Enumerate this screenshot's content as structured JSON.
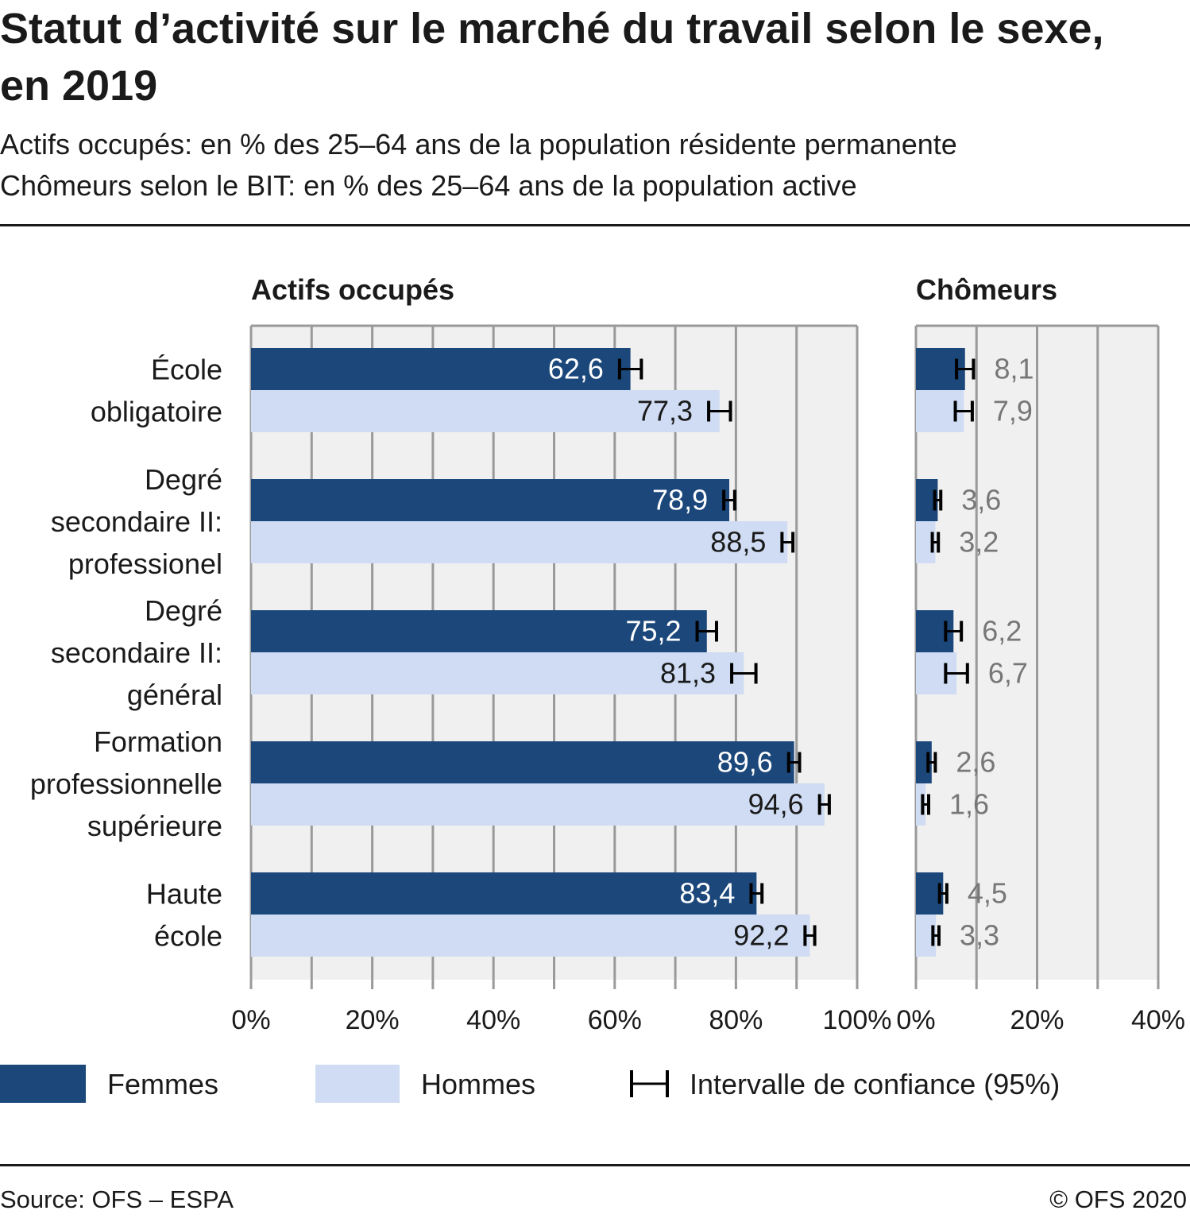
{
  "title": "Statut d’activité sur le marché du travail selon le sexe, en 2019",
  "subtitle_lines": [
    "Actifs occupés: en % des 25–64 ans de la population résidente permanente",
    "Chômeurs selon le BIT: en % des 25–64 ans de la population active"
  ],
  "source": "Source: OFS – ESPA",
  "copyright": "© OFS 2020",
  "colors": {
    "femmes": "#1b477b",
    "hommes": "#cfdcf3",
    "plot_bg": "#f0f0f0",
    "grid": "#9a9a9a",
    "label_outside": "#777777"
  },
  "chart_data": {
    "type": "bar",
    "orientation": "horizontal",
    "categories": [
      [
        "École",
        "obligatoire"
      ],
      [
        "Degré",
        "secondaire II:",
        "professionel"
      ],
      [
        "Degré",
        "secondaire II:",
        "général"
      ],
      [
        "Formation",
        "professionnelle",
        "supérieure"
      ],
      [
        "Haute",
        "école"
      ]
    ],
    "legend": {
      "placement": "bottom",
      "series": [
        "Femmes",
        "Hommes"
      ],
      "ci_label": "Intervalle de confiance (95%)"
    },
    "panels": [
      {
        "title": "Actifs occupés",
        "xlim": [
          0,
          100
        ],
        "ticks": [
          0,
          20,
          40,
          60,
          80,
          100
        ],
        "tick_labels": [
          "0%",
          "20%",
          "40%",
          "60%",
          "80%",
          "100%"
        ],
        "gridline_step": 10,
        "series": [
          {
            "name": "Femmes",
            "values": [
              62.6,
              78.9,
              75.2,
              89.6,
              83.4
            ],
            "labels": [
              "62,6",
              "78,9",
              "75,2",
              "89,6",
              "83,4"
            ],
            "ci": [
              1.8,
              0.9,
              1.6,
              0.9,
              0.9
            ]
          },
          {
            "name": "Hommes",
            "values": [
              77.3,
              88.5,
              81.3,
              94.6,
              92.2
            ],
            "labels": [
              "77,3",
              "88,5",
              "81,3",
              "94,6",
              "92,2"
            ],
            "ci": [
              1.8,
              0.9,
              2.0,
              0.8,
              0.8
            ]
          }
        ]
      },
      {
        "title": "Chômeurs",
        "xlim": [
          0,
          40
        ],
        "ticks": [
          0,
          20,
          40
        ],
        "tick_labels": [
          "0%",
          "20%",
          "40%"
        ],
        "gridline_step": 10,
        "series": [
          {
            "name": "Femmes",
            "values": [
              8.1,
              3.6,
              6.2,
              2.6,
              4.5
            ],
            "labels": [
              "8,1",
              "3,6",
              "6,2",
              "2,6",
              "4,5"
            ],
            "ci": [
              1.4,
              0.5,
              1.3,
              0.6,
              0.6
            ]
          },
          {
            "name": "Hommes",
            "values": [
              7.9,
              3.2,
              6.7,
              1.6,
              3.3
            ],
            "labels": [
              "7,9",
              "3,2",
              "6,7",
              "1,6",
              "3,3"
            ],
            "ci": [
              1.4,
              0.5,
              1.8,
              0.5,
              0.5
            ]
          }
        ]
      }
    ]
  }
}
